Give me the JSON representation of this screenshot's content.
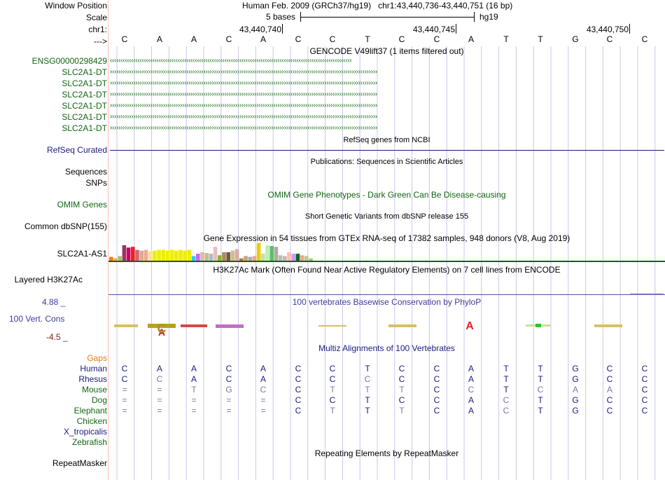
{
  "header": {
    "window_position_label": "Window Position",
    "window_position_value": "Human Feb. 2009 (GRCh37/hg19)   chr1:43,440,736-43,440,751 (16 bp)",
    "scale_label": "Scale",
    "scale_text": "5 bases",
    "scale_assembly": "hg19",
    "chrom_label": "chr1:",
    "position_ticks": [
      "43,440,740",
      "43,440,745",
      "43,440,750"
    ],
    "strand_label": "--->"
  },
  "bases": [
    "C",
    "A",
    "A",
    "C",
    "A",
    "C",
    "C",
    "T",
    "C",
    "C",
    "A",
    "T",
    "T",
    "G",
    "C",
    "C"
  ],
  "tracks": {
    "gencode": {
      "title": "GENCODE V49lift37 (1 items filtered out)",
      "items": [
        {
          "label": "ENSG00000298429",
          "arrow": "‹‹‹‹‹‹‹‹‹‹‹‹‹‹‹‹‹‹‹‹‹‹‹‹‹‹‹‹‹‹‹‹‹‹‹‹‹‹‹‹‹‹‹‹‹‹‹‹‹‹‹‹‹‹‹‹‹‹‹‹‹‹‹‹‹‹‹‹‹‹‹‹‹‹‹‹‹‹‹‹‹‹‹‹‹‹‹‹‹‹‹‹‹‹‹‹‹‹‹‹‹‹‹‹‹‹‹‹‹‹‹‹‹‹"
        },
        {
          "label": "SLC2A1-DT",
          "arrow": "››››››››››››››››››››››››››››››››››››››››››››››››››››››››››››››››››››››››››››››››››››››››››››››››››››››››››››››››››››››››››››››"
        },
        {
          "label": "SLC2A1-DT",
          "arrow": "››››››››››››››››››››››››››››››››››››››››››››››››››››››››››››››››››››››››››››››››››››››››››››››››››››››››››››››››››››››››››››››"
        },
        {
          "label": "SLC2A1-DT",
          "arrow": "››››››››››››››››››››››››››››››››››››››››››››››››››››››››››››››››››››››››››››››››››››››››››››››››››››››››››››››››››››››››››››››"
        },
        {
          "label": "SLC2A1-DT",
          "arrow": "››››››››››››››››››››››››››››››››››››››››››››››››››››››››››››››››››››››››››››››››››››››››››››››››››››››››››››››››››››››››››››››"
        },
        {
          "label": "SLC2A1-DT",
          "arrow": "››››››››››››››››››››››››››››››››››››››››››››››››››››››››››››››››››››››››››››››››››››››››››››››››››››››››››››››››››››››››››››››"
        },
        {
          "label": "SLC2A1-DT",
          "arrow": "››››››››››››››››››››››››››››››››››››››››››››››››››››››››››››››››››››››››››››››››››››››››››››››››››››››››››››››››››››››››››››››"
        }
      ]
    },
    "refseq": {
      "label": "RefSeq Curated",
      "title": "RefSeq genes from NCBI"
    },
    "publications": {
      "label": "Sequences",
      "title": "Publications: Sequences in Scientific Articles"
    },
    "snps": {
      "label": "SNPs"
    },
    "omim": {
      "label": "OMIM Genes",
      "title": "OMIM Gene Phenotypes - Dark Green Can Be Disease-causing"
    },
    "dbsnp": {
      "label": "Common dbSNP(155)",
      "title": "Short Genetic Variants from dbSNP release 155"
    },
    "gtex": {
      "label": "SLC2A1-AS1",
      "title": "Gene Expression in 54 tissues from GTEx RNA-seq of 17382 samples, 948 donors (V8, Aug 2019)",
      "tissues": [
        {
          "v": 0.25,
          "c": "#ff7f00"
        },
        {
          "v": 0.15,
          "c": "#ffaa55"
        },
        {
          "v": 0.3,
          "c": "#a0c36b"
        },
        {
          "v": 1.0,
          "c": "#993366"
        },
        {
          "v": 0.85,
          "c": "#cc0066"
        },
        {
          "v": 0.9,
          "c": "#ee2020"
        },
        {
          "v": 0.7,
          "c": "#cc6677"
        },
        {
          "v": 0.65,
          "c": "#ddaa99"
        },
        {
          "v": 0.7,
          "c": "#eeaa88"
        },
        {
          "v": 0.6,
          "c": "#ffdd99"
        },
        {
          "v": 0.65,
          "c": "#eeee00"
        },
        {
          "v": 0.7,
          "c": "#eeee00"
        },
        {
          "v": 0.7,
          "c": "#eeee00"
        },
        {
          "v": 0.65,
          "c": "#eeee00"
        },
        {
          "v": 0.7,
          "c": "#eeee00"
        },
        {
          "v": 0.65,
          "c": "#eeee00"
        },
        {
          "v": 0.7,
          "c": "#eeee00"
        },
        {
          "v": 0.65,
          "c": "#eeee00"
        },
        {
          "v": 0.7,
          "c": "#eeee00"
        },
        {
          "v": 0.3,
          "c": "#33ccff"
        },
        {
          "v": 0.45,
          "c": "#cc66ff"
        },
        {
          "v": 0.55,
          "c": "#ddbbaa"
        },
        {
          "v": 0.5,
          "c": "#ccbb88"
        },
        {
          "v": 0.45,
          "c": "#aabbcc"
        },
        {
          "v": 0.9,
          "c": "#eebbbb"
        },
        {
          "v": 0.35,
          "c": "#99aa33"
        },
        {
          "v": 0.55,
          "c": "#aa8866"
        },
        {
          "v": 0.55,
          "c": "#775544"
        },
        {
          "v": 0.65,
          "c": "#ccbb99"
        },
        {
          "v": 0.75,
          "c": "#ddaaaa"
        },
        {
          "v": 0.15,
          "c": "#aa7744"
        },
        {
          "v": 0.3,
          "c": "#b9a888"
        },
        {
          "v": 0.25,
          "c": "#aaaaaa"
        },
        {
          "v": 0.3,
          "c": "#ddaa99"
        },
        {
          "v": 1.15,
          "c": "#eecc00"
        },
        {
          "v": 0.45,
          "c": "#ccddaa"
        },
        {
          "v": 1.0,
          "c": "#bbeebb"
        },
        {
          "v": 0.95,
          "c": "#66bb66"
        },
        {
          "v": 0.9,
          "c": "#aaaaaa"
        },
        {
          "v": 0.35,
          "c": "#bbbbbb"
        },
        {
          "v": 0.3,
          "c": "#ddaabb"
        },
        {
          "v": 0.55,
          "c": "#ffbbbb"
        },
        {
          "v": 0.45,
          "c": "#cc99ff"
        },
        {
          "v": 0.45,
          "c": "#006633"
        },
        {
          "v": 0.35,
          "c": "#ddaa88"
        },
        {
          "v": 0.3,
          "c": "#ccbbaa"
        },
        {
          "v": 0.15,
          "c": "#bbbb88"
        }
      ]
    },
    "h3k27ac": {
      "label": "Layered H3K27Ac",
      "title": "H3K27Ac Mark (Often Found Near Active Regulatory Elements) on 7 cell lines from ENCODE"
    },
    "phylop": {
      "label": "100 Vert. Cons",
      "max": "4.88 _",
      "min": "-4.5 _",
      "title": "100 vertebrates Basewise Conservation by PhyloP"
    },
    "multiz": {
      "title": "Multiz Alignments of 100 Vertebrates",
      "gaps_label": "Gaps",
      "species": [
        {
          "name": "Human",
          "color": "#1a1a80",
          "seq": [
            "C",
            "A",
            "A",
            "C",
            "A",
            "C",
            "C",
            "T",
            "C",
            "C",
            "A",
            "T",
            "T",
            "G",
            "C",
            "C"
          ],
          "dim": []
        },
        {
          "name": "Rhesus",
          "color": "#1a1a80",
          "seq": [
            "C",
            "C",
            "A",
            "C",
            "A",
            "C",
            "C",
            "C",
            "C",
            "C",
            "A",
            "T",
            "T",
            "G",
            "C",
            "C"
          ],
          "dim": [
            1,
            7
          ]
        },
        {
          "name": "Mouse",
          "color": "#116611",
          "seq": [
            "=",
            "=",
            "T",
            "G",
            "C",
            "C",
            "T",
            "T",
            "T",
            "C",
            "C",
            "T",
            "C",
            "A",
            "A",
            "C"
          ],
          "dim": [
            0,
            1,
            2,
            3,
            4,
            6,
            7,
            8,
            10,
            12,
            13,
            14
          ]
        },
        {
          "name": "Dog",
          "color": "#116611",
          "seq": [
            "=",
            "=",
            "=",
            "=",
            "=",
            "C",
            "C",
            "T",
            "C",
            "C",
            "A",
            "C",
            "T",
            "G",
            "C",
            "C"
          ],
          "dim": [
            0,
            1,
            2,
            3,
            4,
            11
          ]
        },
        {
          "name": "Elephant",
          "color": "#116611",
          "seq": [
            "=",
            "=",
            "=",
            "=",
            "=",
            "C",
            "T",
            "T",
            "T",
            "C",
            "A",
            "C",
            "T",
            "G",
            "C",
            "C"
          ],
          "dim": [
            0,
            1,
            2,
            3,
            4,
            6,
            8,
            11
          ]
        },
        {
          "name": "Chicken",
          "color": "#116611",
          "seq": [],
          "dim": []
        },
        {
          "name": "X_tropicalis",
          "color": "#1a1a80",
          "seq": [],
          "dim": []
        },
        {
          "name": "Zebrafish",
          "color": "#116611",
          "seq": [],
          "dim": []
        }
      ]
    },
    "repeatmasker": {
      "label": "RepeatMasker",
      "title": "Repeating Elements by RepeatMasker"
    }
  },
  "colors": {
    "grid": "#c8c8e8",
    "divider": "#ffbbbb",
    "green": "#116611",
    "navy": "#1a1a80"
  }
}
